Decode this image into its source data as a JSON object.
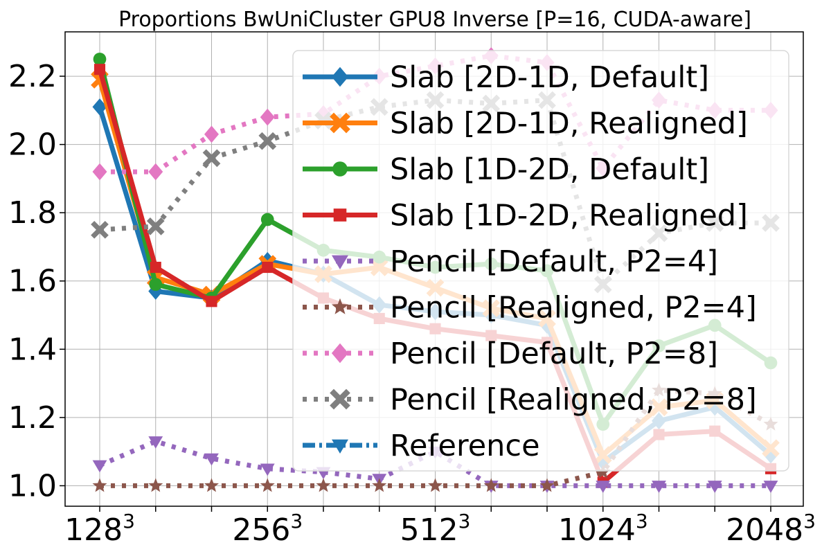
{
  "chart_data": {
    "type": "line",
    "title": "Proportions BwUniCluster GPU8 Inverse [P=16, CUDA-aware]",
    "xlabel": "",
    "ylabel": "",
    "x_ticks": [
      {
        "base": "128",
        "exp": "3"
      },
      {
        "base": "256",
        "exp": "3"
      },
      {
        "base": "512",
        "exp": "3"
      },
      {
        "base": "1024",
        "exp": "3"
      },
      {
        "base": "2048",
        "exp": "3"
      }
    ],
    "y_ticks": [
      "1.0",
      "1.2",
      "1.4",
      "1.6",
      "1.8",
      "2.0",
      "2.2"
    ],
    "ylim": [
      0.94,
      2.33
    ],
    "grid": true,
    "legend_position": "upper-right",
    "series": [
      {
        "name": "Slab [2D-1D, Default]",
        "color": "#1f77b4",
        "marker": "diamond",
        "style": "solid",
        "values": [
          2.11,
          1.57,
          1.55,
          1.66,
          1.62,
          1.53,
          1.51,
          1.5,
          1.47,
          1.07,
          1.19,
          1.23,
          1.09
        ]
      },
      {
        "name": "Slab [2D-1D, Realigned]",
        "color": "#ff7f0e",
        "marker": "x-thick",
        "style": "solid",
        "values": [
          2.19,
          1.61,
          1.56,
          1.65,
          1.62,
          1.64,
          1.58,
          1.52,
          1.49,
          1.09,
          1.23,
          1.25,
          1.11
        ]
      },
      {
        "name": "Slab [1D-2D, Default]",
        "color": "#2ca02c",
        "marker": "circle",
        "style": "solid",
        "values": [
          2.25,
          1.59,
          1.55,
          1.78,
          1.69,
          1.67,
          1.64,
          1.65,
          1.63,
          1.18,
          1.41,
          1.47,
          1.36
        ]
      },
      {
        "name": "Slab [1D-2D, Realigned]",
        "color": "#d62728",
        "marker": "square",
        "style": "solid",
        "values": [
          2.22,
          1.64,
          1.54,
          1.64,
          1.55,
          1.49,
          1.46,
          1.44,
          1.42,
          1.01,
          1.15,
          1.16,
          1.05
        ]
      },
      {
        "name": "Pencil [Default, P2=4]",
        "color": "#9467bd",
        "marker": "triangle-down",
        "style": "dotted",
        "values": [
          1.06,
          1.13,
          1.08,
          1.05,
          1.04,
          1.02,
          1.1,
          1.0,
          1.0,
          1.0,
          1.0,
          1.0,
          1.0
        ]
      },
      {
        "name": "Pencil [Realigned, P2=4]",
        "color": "#8c564b",
        "marker": "star",
        "style": "dotted",
        "values": [
          1.0,
          1.0,
          1.0,
          1.0,
          1.0,
          1.0,
          1.0,
          1.0,
          1.0,
          1.04,
          1.28,
          1.27,
          1.18
        ]
      },
      {
        "name": "Pencil [Default, P2=8]",
        "color": "#e377c2",
        "marker": "diamond",
        "style": "dotted",
        "values": [
          1.92,
          1.92,
          2.03,
          2.08,
          2.09,
          2.2,
          2.23,
          2.26,
          2.24,
          1.93,
          2.13,
          2.1,
          2.1
        ]
      },
      {
        "name": "Pencil [Realigned, P2=8]",
        "color": "#7f7f7f",
        "marker": "x-thick",
        "style": "dotted",
        "values": [
          1.75,
          1.76,
          1.96,
          2.01,
          2.07,
          2.11,
          2.13,
          2.12,
          2.13,
          1.59,
          1.74,
          1.77,
          1.77
        ]
      },
      {
        "name": "Reference",
        "color": "#1f77b4",
        "marker": "triangle-down",
        "style": "dashdot",
        "values": []
      }
    ]
  }
}
